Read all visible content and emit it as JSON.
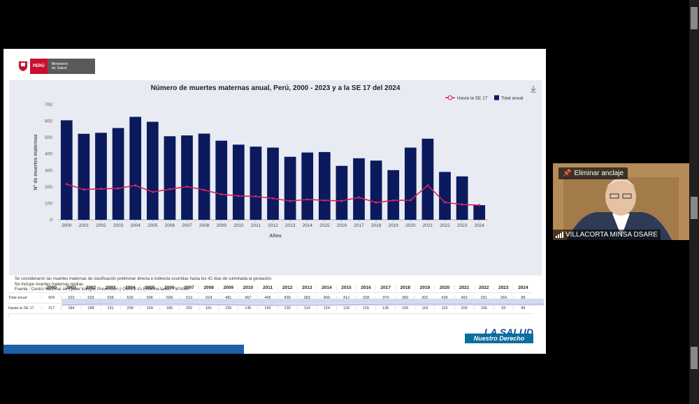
{
  "logo": {
    "country": "PERÚ",
    "ministry_line1": "Ministerio",
    "ministry_line2": "de Salud"
  },
  "chart_data": {
    "type": "bar",
    "title": "Número de muertes maternas anual, Perú, 2000 - 2023 y a la SE 17 del 2024",
    "xlabel": "Años",
    "ylabel": "N° de muertes maternas",
    "ylim": [
      0,
      700
    ],
    "yticks": [
      0,
      100,
      200,
      300,
      400,
      500,
      600,
      700
    ],
    "categories": [
      "2000",
      "2001",
      "2002",
      "2003",
      "2004",
      "2005",
      "2006",
      "2007",
      "2008",
      "2009",
      "2010",
      "2011",
      "2012",
      "2013",
      "2014",
      "2015",
      "2016",
      "2017",
      "2018",
      "2019",
      "2020",
      "2021",
      "2022",
      "2023",
      "2024"
    ],
    "legend_position": "top-right",
    "series": [
      {
        "name": "Total anual",
        "type": "bar",
        "color": "#0a1a5c",
        "values": [
          605,
          523,
          529,
          558,
          626,
          596,
          508,
          513,
          524,
          481,
          457,
          445,
          439,
          383,
          409,
          412,
          328,
          374,
          360,
          302,
          439,
          493,
          291,
          264,
          89
        ]
      },
      {
        "name": "Hasta la SE 17",
        "type": "line",
        "color": "#d6235a",
        "values": [
          217,
          184,
          188,
          191,
          209,
          169,
          186,
          202,
          181,
          155,
          145,
          142,
          130,
          114,
          124,
          118,
          115,
          136,
          105,
          118,
          119,
          209,
          106,
          93,
          89
        ]
      }
    ]
  },
  "notes": [
    "Se consideraron las muertes maternas de clasificación preliminar directa e indirecta ocurridas hasta los 42 días de culminada la gestación.",
    "No incluye muertes maternas tardías.",
    "Fuente : Centro Nacional de Epidemiología, Prevención y Control de Enfermedades – MINSA."
  ],
  "table": {
    "row_labels": [
      "Total anual",
      "Hasta la SE 17"
    ]
  },
  "footer_logo": {
    "top": "LA SALUD",
    "badge": "Nuestro Derecho"
  },
  "video": {
    "pin_label": "Eliminar anclaje",
    "name": "VILLACORTA  MINSA DSARE"
  },
  "colors": {
    "accent_bar": "#1d5fa8",
    "line": "#d6235a",
    "bar": "#0a1a5c"
  }
}
